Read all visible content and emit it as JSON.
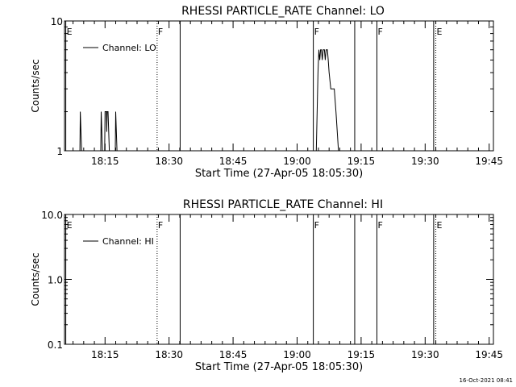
{
  "footer_timestamp": "16-Oct-2021 08:41",
  "chart_data": [
    {
      "type": "line",
      "title": "RHESSI PARTICLE_RATE Channel: LO",
      "xlabel": "Start Time (27-Apr-05 18:05:30)",
      "ylabel": "Counts/sec",
      "y_scale": "log",
      "ylim": [
        1,
        10
      ],
      "y_ticks": [
        {
          "value": 10,
          "label": "10"
        },
        {
          "value": 1,
          "label": "1"
        }
      ],
      "xlim_minutes_after_start": [
        0,
        100.5
      ],
      "x_ticks": [
        {
          "minutes": 9.5,
          "label": "18:15"
        },
        {
          "minutes": 24.5,
          "label": "18:30"
        },
        {
          "minutes": 39.5,
          "label": "18:45"
        },
        {
          "minutes": 54.5,
          "label": "19:00"
        },
        {
          "minutes": 69.5,
          "label": "19:15"
        },
        {
          "minutes": 84.5,
          "label": "19:30"
        },
        {
          "minutes": 99.5,
          "label": "19:45"
        }
      ],
      "legend": {
        "entry": "Channel: LO",
        "placement": "top-left"
      },
      "markers": [
        {
          "minutes": 0.3,
          "label": "E",
          "style": "solid"
        },
        {
          "minutes": 21.7,
          "label": "F",
          "style": "dotted"
        },
        {
          "minutes": 27.1,
          "label": "",
          "style": "solid"
        },
        {
          "minutes": 58.3,
          "label": "F",
          "style": "solid"
        },
        {
          "minutes": 68.0,
          "label": "",
          "style": "solid"
        },
        {
          "minutes": 73.2,
          "label": "F",
          "style": "solid"
        },
        {
          "minutes": 86.5,
          "label": "",
          "style": "solid"
        },
        {
          "minutes": 87.0,
          "label": "E",
          "style": "dotted"
        },
        {
          "minutes": 108.8,
          "label": "",
          "style": "dotted"
        }
      ],
      "series": [
        {
          "segments": [
            [
              [
                3.6,
                1
              ],
              [
                3.7,
                2
              ],
              [
                4.0,
                1
              ]
            ],
            [
              [
                8.5,
                1
              ],
              [
                8.6,
                2
              ],
              [
                8.9,
                1
              ],
              [
                9.4,
                1
              ],
              [
                9.5,
                2
              ],
              [
                9.8,
                2
              ],
              [
                9.9,
                1.4
              ],
              [
                10.0,
                2
              ],
              [
                10.2,
                2
              ],
              [
                10.5,
                1
              ]
            ],
            [
              [
                11.9,
                1
              ],
              [
                12.0,
                2
              ],
              [
                12.3,
                1
              ]
            ],
            [
              [
                59.0,
                1
              ],
              [
                59.4,
                4
              ],
              [
                59.6,
                6
              ],
              [
                59.8,
                5
              ],
              [
                60.0,
                6
              ],
              [
                60.2,
                6
              ],
              [
                60.4,
                5
              ],
              [
                60.6,
                6
              ],
              [
                60.9,
                6
              ],
              [
                61.1,
                5
              ],
              [
                61.3,
                6
              ],
              [
                61.6,
                6
              ],
              [
                61.8,
                5
              ],
              [
                62.0,
                4
              ],
              [
                62.4,
                3
              ],
              [
                63.2,
                3
              ],
              [
                63.6,
                2
              ],
              [
                64.2,
                1
              ]
            ]
          ]
        }
      ]
    },
    {
      "type": "line",
      "title": "RHESSI PARTICLE_RATE Channel: HI",
      "xlabel": "Start Time (27-Apr-05 18:05:30)",
      "ylabel": "Counts/sec",
      "y_scale": "log",
      "ylim": [
        0.1,
        10
      ],
      "y_ticks": [
        {
          "value": 10,
          "label": "10.0"
        },
        {
          "value": 1,
          "label": "1.0"
        },
        {
          "value": 0.1,
          "label": "0.1"
        }
      ],
      "xlim_minutes_after_start": [
        0,
        100.5
      ],
      "x_ticks": [
        {
          "minutes": 9.5,
          "label": "18:15"
        },
        {
          "minutes": 24.5,
          "label": "18:30"
        },
        {
          "minutes": 39.5,
          "label": "18:45"
        },
        {
          "minutes": 54.5,
          "label": "19:00"
        },
        {
          "minutes": 69.5,
          "label": "19:15"
        },
        {
          "minutes": 84.5,
          "label": "19:30"
        },
        {
          "minutes": 99.5,
          "label": "19:45"
        }
      ],
      "legend": {
        "entry": "Channel: HI",
        "placement": "top-left"
      },
      "markers": [
        {
          "minutes": 0.3,
          "label": "E",
          "style": "solid"
        },
        {
          "minutes": 21.7,
          "label": "F",
          "style": "dotted"
        },
        {
          "minutes": 27.1,
          "label": "",
          "style": "solid"
        },
        {
          "minutes": 58.3,
          "label": "F",
          "style": "solid"
        },
        {
          "minutes": 68.0,
          "label": "",
          "style": "solid"
        },
        {
          "minutes": 73.2,
          "label": "F",
          "style": "solid"
        },
        {
          "minutes": 86.5,
          "label": "",
          "style": "solid"
        },
        {
          "minutes": 87.0,
          "label": "E",
          "style": "dotted"
        },
        {
          "minutes": 108.8,
          "label": "",
          "style": "dotted"
        }
      ],
      "series": []
    }
  ]
}
